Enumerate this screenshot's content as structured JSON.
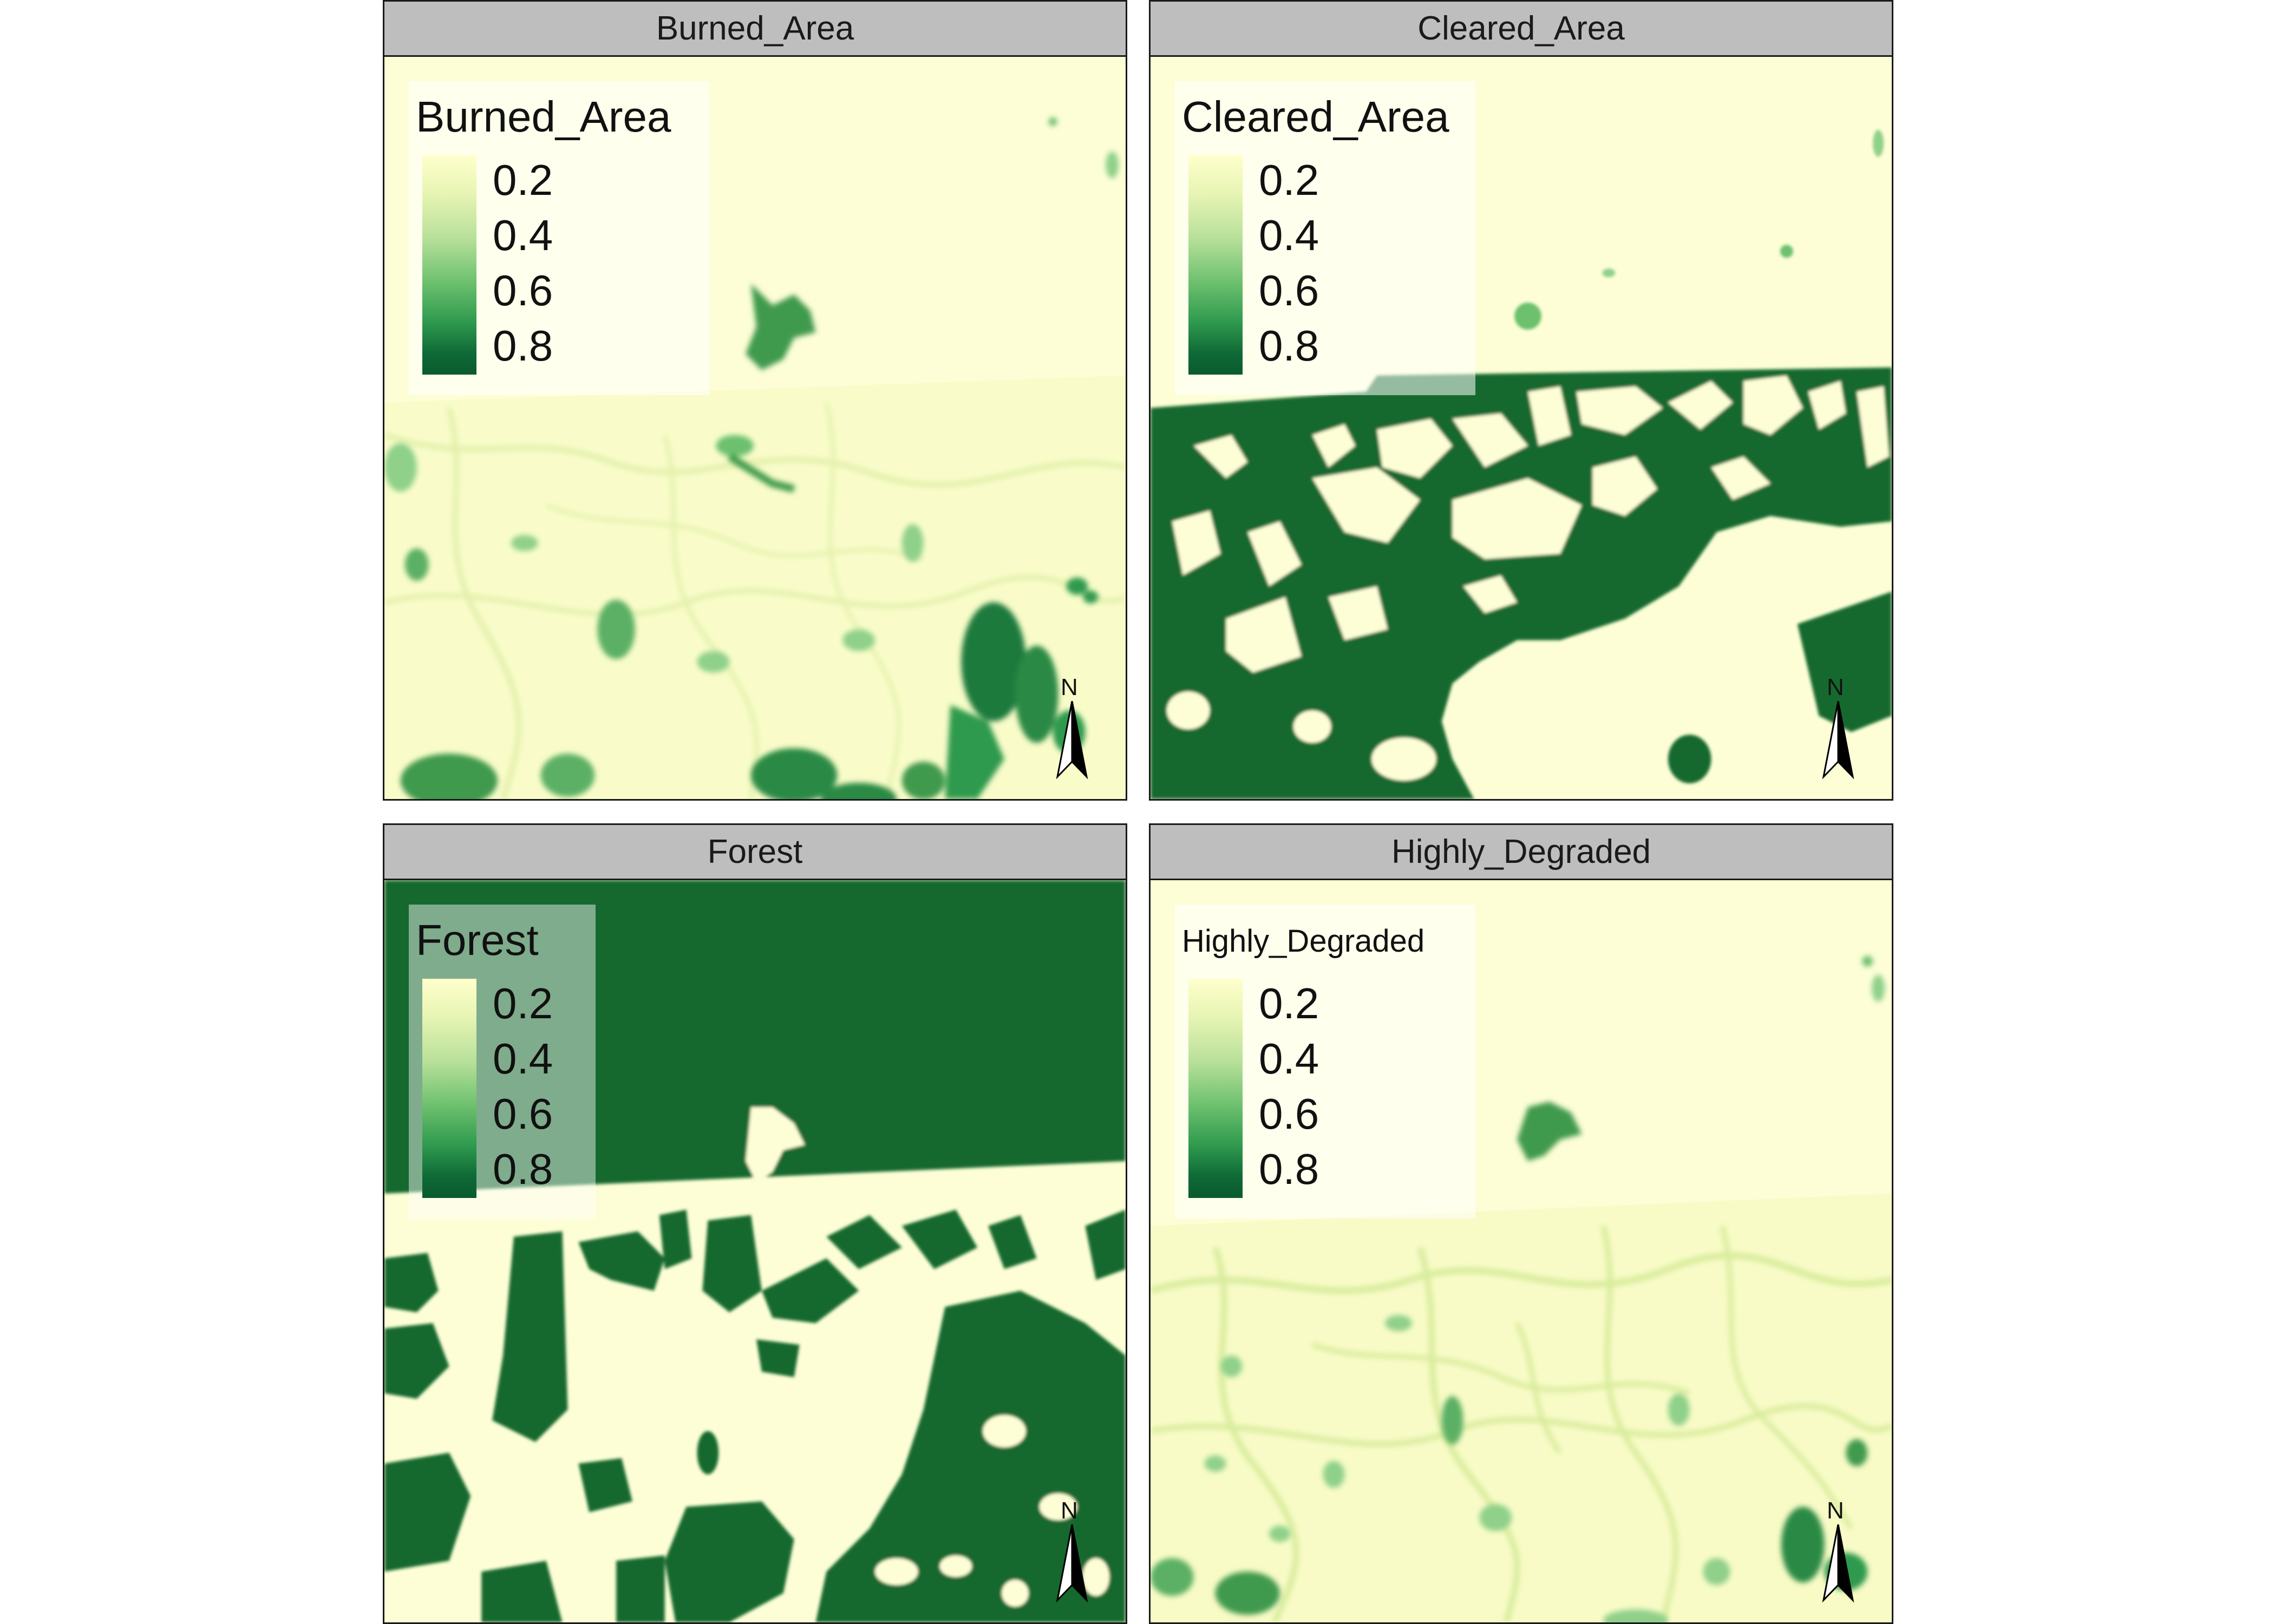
{
  "legend": {
    "ticks": [
      "0.2",
      "0.4",
      "0.6",
      "0.8"
    ],
    "colors": [
      "#ffffcc",
      "#c2e699",
      "#78c679",
      "#31a354",
      "#006837"
    ]
  },
  "north_arrow": {
    "label": "N"
  },
  "panels": [
    {
      "title": "Burned_Area",
      "legend_title": "Burned_Area"
    },
    {
      "title": "Cleared_Area",
      "legend_title": "Cleared_Area"
    },
    {
      "title": "Forest",
      "legend_title": "Forest"
    },
    {
      "title": "Highly_Degraded",
      "legend_title": "Highly_Degraded"
    }
  ]
}
